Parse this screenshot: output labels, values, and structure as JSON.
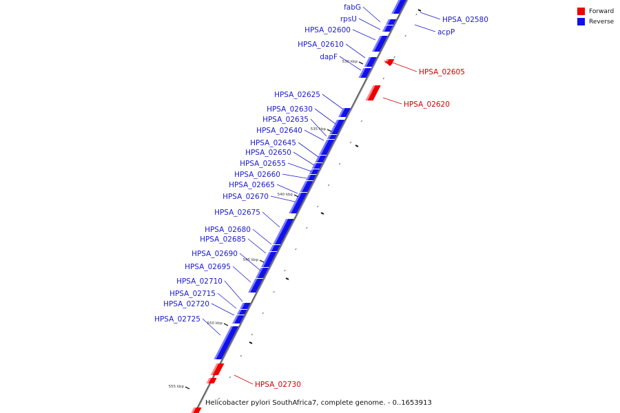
{
  "legend": {
    "forward": {
      "label": "Forward",
      "color": "#ee0000"
    },
    "reverse": {
      "label": "Reverse",
      "color": "#1111ee"
    }
  },
  "caption": "Helicobacter pylori SouthAfrica7, complete genome. - 0..1653913",
  "colors": {
    "backbone": "#9a9a9a",
    "forward_label": "#cc0000",
    "reverse_label": "#1a1acc",
    "tick": "#222222"
  },
  "ticks": [
    "530 kbp",
    "535 kbp",
    "540 kbp",
    "545 kbp",
    "550 kbp",
    "555 kbp"
  ],
  "genes": [
    {
      "name": "HPSA_02580",
      "strand": "reverse"
    },
    {
      "name": "acpP",
      "strand": "reverse"
    },
    {
      "name": "fabG",
      "strand": "reverse"
    },
    {
      "name": "rpsU",
      "strand": "reverse"
    },
    {
      "name": "HPSA_02600",
      "strand": "reverse"
    },
    {
      "name": "HPSA_02610",
      "strand": "reverse"
    },
    {
      "name": "dapF",
      "strand": "reverse"
    },
    {
      "name": "HPSA_02605",
      "strand": "forward"
    },
    {
      "name": "HPSA_02620",
      "strand": "forward"
    },
    {
      "name": "HPSA_02625",
      "strand": "reverse"
    },
    {
      "name": "HPSA_02630",
      "strand": "reverse"
    },
    {
      "name": "HPSA_02635",
      "strand": "reverse"
    },
    {
      "name": "HPSA_02640",
      "strand": "reverse"
    },
    {
      "name": "HPSA_02645",
      "strand": "reverse"
    },
    {
      "name": "HPSA_02650",
      "strand": "reverse"
    },
    {
      "name": "HPSA_02655",
      "strand": "reverse"
    },
    {
      "name": "HPSA_02660",
      "strand": "reverse"
    },
    {
      "name": "HPSA_02665",
      "strand": "reverse"
    },
    {
      "name": "HPSA_02670",
      "strand": "reverse"
    },
    {
      "name": "HPSA_02675",
      "strand": "reverse"
    },
    {
      "name": "HPSA_02680",
      "strand": "reverse"
    },
    {
      "name": "HPSA_02685",
      "strand": "reverse"
    },
    {
      "name": "HPSA_02690",
      "strand": "reverse"
    },
    {
      "name": "HPSA_02695",
      "strand": "reverse"
    },
    {
      "name": "HPSA_02710",
      "strand": "reverse"
    },
    {
      "name": "HPSA_02715",
      "strand": "reverse"
    },
    {
      "name": "HPSA_02720",
      "strand": "reverse"
    },
    {
      "name": "HPSA_02725",
      "strand": "reverse"
    },
    {
      "name": "HPSA_02730",
      "strand": "forward"
    }
  ]
}
